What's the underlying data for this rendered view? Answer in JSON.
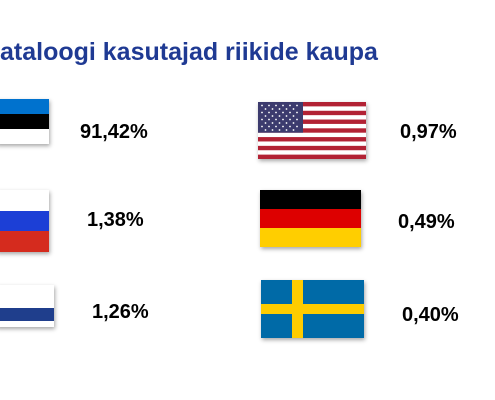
{
  "title": "ataloogi kasutajad riikide kaupa",
  "countries": [
    {
      "flag": "estonia-flag",
      "value": "91,42%"
    },
    {
      "flag": "russia-flag",
      "value": "1,38%"
    },
    {
      "flag": "finland-flag",
      "value": "1,26%"
    },
    {
      "flag": "usa-flag",
      "value": "0,97%"
    },
    {
      "flag": "germany-flag",
      "value": "0,49%"
    },
    {
      "flag": "sweden-flag",
      "value": "0,40%"
    }
  ],
  "colors": {
    "title": "#1f3a93",
    "estonia": [
      "#0072ce",
      "#000000",
      "#ffffff"
    ],
    "russia": [
      "#ffffff",
      "#1c3fd6",
      "#d52b1e"
    ],
    "finland": [
      "#ffffff",
      "#1f3e8c"
    ],
    "usa": [
      "#b22234",
      "#ffffff",
      "#3c3b6e"
    ],
    "germany": [
      "#000000",
      "#dd0000",
      "#ffce00"
    ],
    "sweden": [
      "#006aa7",
      "#fecc00"
    ]
  }
}
